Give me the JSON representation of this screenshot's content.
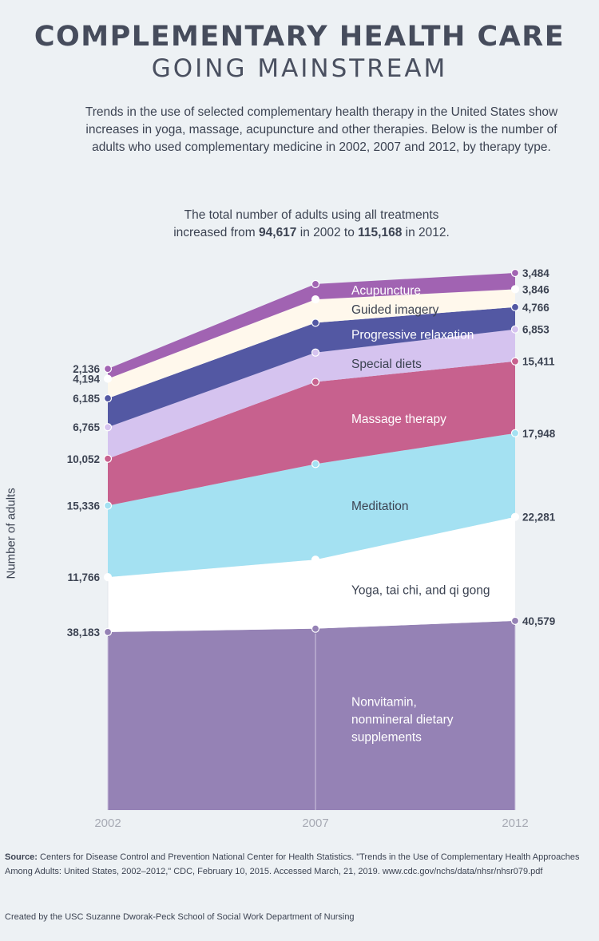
{
  "title": {
    "line1": "COMPLEMENTARY HEALTH CARE",
    "line2": "GOING MAINSTREAM"
  },
  "intro": "Trends in the use of selected complementary health therapy in the United States show increases in yoga, massage, acupuncture and other therapies. Below is the number of adults who used complementary medicine in 2002, 2007 and 2012, by therapy type.",
  "total": {
    "line1": "The total number of adults using all treatments",
    "before": "increased from ",
    "value_2002": "94,617",
    "middle": " in 2002 to ",
    "value_2012": "115,168",
    "after": " in 2012."
  },
  "footer": {
    "source_label": "Source:",
    "source_text": " Centers for Disease Control and Prevention National Center for Health Statistics. \"Trends in the Use of Complementary Health Approaches Among Adults: United States, 2002–2012,\" CDC, February 10, 2015. Accessed March, 21, 2019. www.cdc.gov/nchs/data/nhsr/nhsr079.pdf",
    "credit": "Created by the USC Suzanne Dworak-Peck School of Social Work Department of Nursing"
  },
  "chart_data": {
    "type": "area",
    "stacked": true,
    "ylabel": "Number of adults",
    "x": [
      "2002",
      "2007",
      "2012"
    ],
    "ylim": [
      0,
      115168
    ],
    "series": [
      {
        "name": "Nonvitamin, nonmineral dietary supplements",
        "values": [
          38183,
          38900,
          40579
        ],
        "labels": [
          "38,183",
          "",
          "40,579"
        ],
        "color": "#9582b5"
      },
      {
        "name": "Yoga, tai chi, and qi gong",
        "values": [
          11766,
          14800,
          22281
        ],
        "labels": [
          "11,766",
          "",
          "22,281"
        ],
        "color": "#ffffff"
      },
      {
        "name": "Meditation",
        "values": [
          15336,
          20500,
          17948
        ],
        "labels": [
          "15,336",
          "",
          "17,948"
        ],
        "color": "#a4e1f2"
      },
      {
        "name": "Massage therapy",
        "values": [
          10052,
          17600,
          15411
        ],
        "labels": [
          "10,052",
          "",
          "15,411"
        ],
        "color": "#c7618e"
      },
      {
        "name": "Special diets",
        "values": [
          6765,
          6300,
          6853
        ],
        "labels": [
          "6,765",
          "",
          "6,853"
        ],
        "color": "#d5c3ef"
      },
      {
        "name": "Progressive relaxation",
        "values": [
          6185,
          6400,
          4766
        ],
        "labels": [
          "6,185",
          "",
          "4,766"
        ],
        "color": "#5358a3"
      },
      {
        "name": "Guided imagery",
        "values": [
          4194,
          5000,
          3846
        ],
        "labels": [
          "4,194",
          "",
          "3,846"
        ],
        "color": "#fff8ec"
      },
      {
        "name": "Acupuncture",
        "values": [
          2136,
          3300,
          3484
        ],
        "labels": [
          "2,136",
          "",
          "3,484"
        ],
        "color": "#a163b2"
      }
    ]
  }
}
